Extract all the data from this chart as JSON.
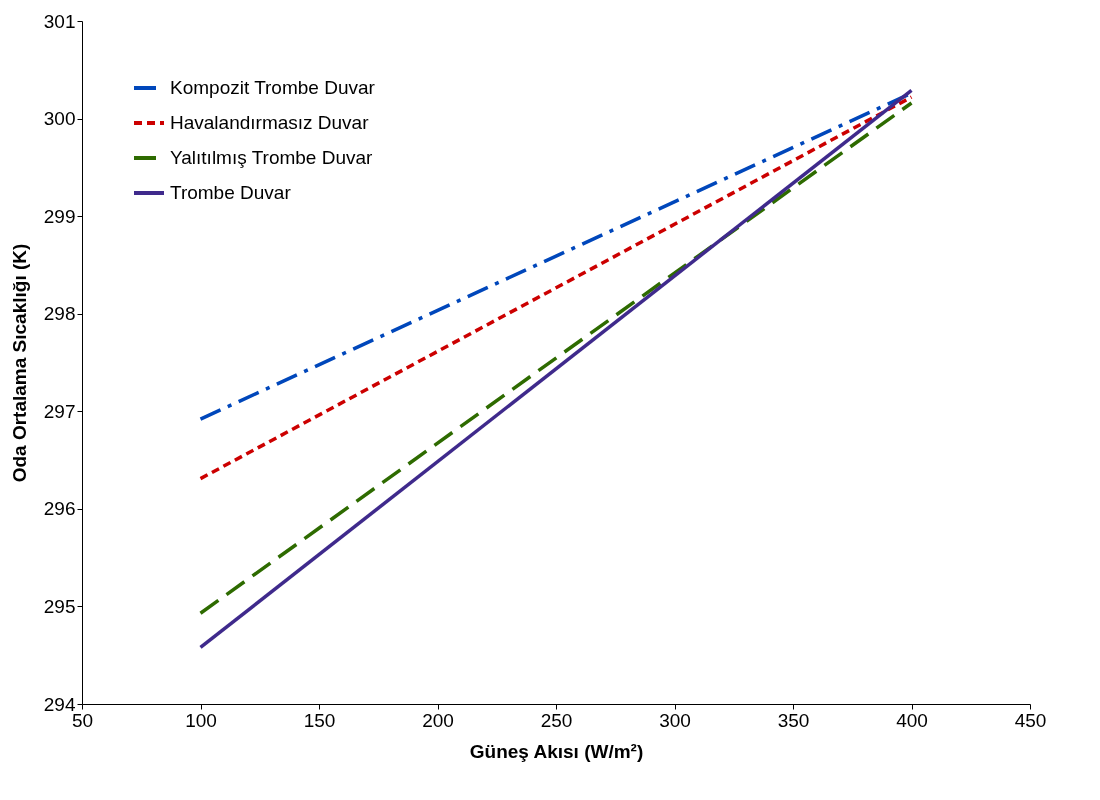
{
  "chart_data": {
    "type": "line",
    "xlabel": "Güneş Akısı (W/m²)",
    "ylabel": "Oda Ortalama  Sıcaklığı (K)",
    "x": [
      100,
      400
    ],
    "xlim": [
      50,
      450
    ],
    "xticks": [
      50,
      100,
      150,
      200,
      250,
      300,
      350,
      400,
      450
    ],
    "ylim": [
      294,
      301
    ],
    "yticks": [
      294,
      295,
      296,
      297,
      298,
      299,
      300,
      301
    ],
    "grid": false,
    "legend": "top left",
    "marker": "none",
    "series": [
      {
        "name": "Kompozit Trombe Duvar",
        "color": "#0047bb",
        "line_style": "dashdot",
        "values": [
          296.92,
          300.26
        ]
      },
      {
        "name": "Havalandırmasız Duvar",
        "color": "#cc0000",
        "line_style": "dashed",
        "values": [
          296.31,
          300.22
        ]
      },
      {
        "name": "Yalıtılmış Trombe Duvar",
        "color": "#2e6b00",
        "line_style": "longdash",
        "values": [
          294.93,
          300.16
        ]
      },
      {
        "name": "Trombe Duvar",
        "color": "#3f2a8c",
        "line_style": "solid",
        "values": [
          294.58,
          300.29
        ]
      }
    ]
  }
}
